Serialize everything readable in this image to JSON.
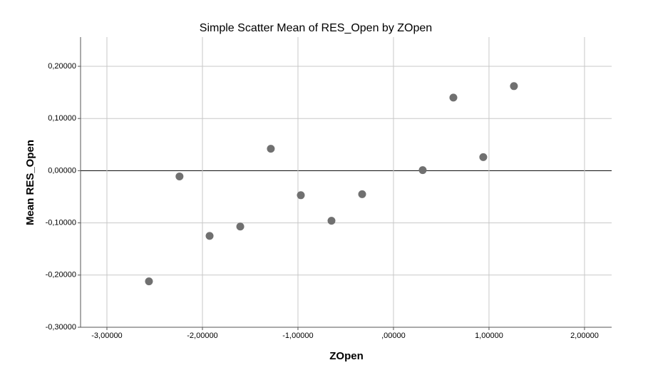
{
  "chart_data": {
    "type": "scatter",
    "title": "Simple Scatter Mean of RES_Open by ZOpen",
    "x_label": "ZOpen",
    "y_label": "Mean RES_Open",
    "x": [
      -2.56,
      -2.24,
      -1.925,
      -1.604,
      -1.284,
      -0.97,
      -0.649,
      -0.328,
      0.306,
      0.627,
      0.94,
      1.261
    ],
    "values": [
      -0.212,
      -0.011,
      -0.125,
      -0.107,
      0.042,
      -0.047,
      -0.096,
      -0.045,
      0.001,
      0.14,
      0.026,
      0.162
    ],
    "color": "#707070",
    "xlim": [
      -3.276,
      2.284
    ],
    "ylim": [
      -0.3,
      0.256
    ],
    "xticks": [
      {
        "value": -3,
        "label": "-3,00000"
      },
      {
        "value": -2,
        "label": "-2,00000"
      },
      {
        "value": -1,
        "label": "-1,00000"
      },
      {
        "value": 0,
        "label": ",00000"
      },
      {
        "value": 1,
        "label": "1,00000"
      },
      {
        "value": 2,
        "label": "2,00000"
      }
    ],
    "yticks": [
      {
        "value": -0.3,
        "label": "-0,30000"
      },
      {
        "value": -0.2,
        "label": "-0,20000"
      },
      {
        "value": -0.1,
        "label": "-0,10000"
      },
      {
        "value": 0,
        "label": "0,00000"
      },
      {
        "value": 0.1,
        "label": "0,10000"
      },
      {
        "value": 0.2,
        "label": "0,20000"
      }
    ],
    "grid": true
  }
}
